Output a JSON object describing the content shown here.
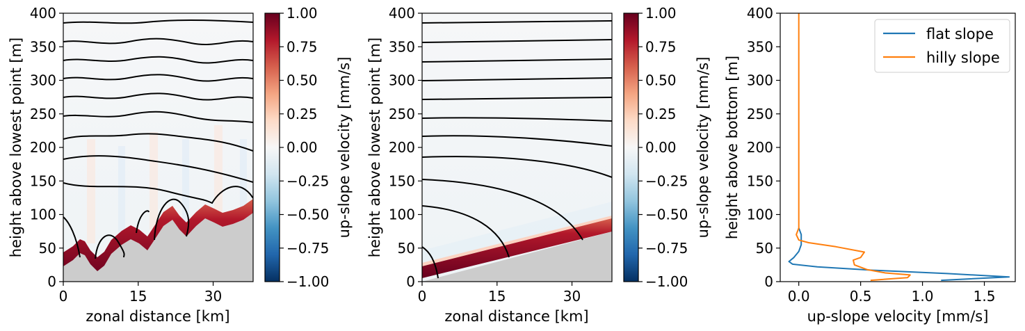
{
  "colors": {
    "flat": "#1f77b4",
    "hilly": "#ff7f0e",
    "terrain": "#cccccc",
    "cmap_stops": [
      "#053061",
      "#2166ac",
      "#4393c3",
      "#92c5de",
      "#d1e5f0",
      "#f7f7f7",
      "#fddbc7",
      "#f4a582",
      "#d6604d",
      "#b2182b",
      "#67001f"
    ]
  },
  "chart_data": [
    {
      "type": "heatmap",
      "panel": "left",
      "xlabel": "zonal distance [km]",
      "ylabel": "height above lowest point [m]",
      "xlim": [
        0,
        38
      ],
      "ylim": [
        0,
        400
      ],
      "xticks": [
        0,
        15,
        30
      ],
      "yticks": [
        0,
        50,
        100,
        150,
        200,
        250,
        300,
        350,
        400
      ],
      "colorbar": {
        "label": "up-slope velocity [mm/s]",
        "range": [
          -1.0,
          1.0
        ],
        "ticks": [
          "1.00",
          "0.75",
          "0.50",
          "0.25",
          "0.00",
          "−0.25",
          "−0.50",
          "−0.75",
          "−1.00"
        ],
        "tick_values": [
          1.0,
          0.75,
          0.5,
          0.25,
          0.0,
          -0.25,
          -0.5,
          -0.75,
          -1.0
        ]
      },
      "terrain_x": [
        0,
        2,
        4,
        6,
        8,
        10,
        12,
        14,
        16,
        18,
        20,
        22,
        24,
        26,
        28,
        30,
        32,
        34,
        36,
        38
      ],
      "terrain_y": [
        22,
        35,
        50,
        40,
        25,
        30,
        52,
        70,
        78,
        60,
        65,
        85,
        92,
        75,
        68,
        80,
        88,
        80,
        75,
        90
      ]
    },
    {
      "type": "heatmap",
      "panel": "middle",
      "xlabel": "zonal distance [km]",
      "ylabel": "height above lowest point [m]",
      "xlim": [
        0,
        38
      ],
      "ylim": [
        0,
        400
      ],
      "xticks": [
        0,
        15,
        30
      ],
      "yticks": [
        0,
        50,
        100,
        150,
        200,
        250,
        300,
        350,
        400
      ],
      "colorbar": {
        "label": "up-slope velocity [mm/s]",
        "range": [
          -1.0,
          1.0
        ],
        "ticks": [
          "1.00",
          "0.75",
          "0.50",
          "0.25",
          "0.00",
          "−0.25",
          "−0.50",
          "−0.75",
          "−1.00"
        ],
        "tick_values": [
          1.0,
          0.75,
          0.5,
          0.25,
          0.0,
          -0.25,
          -0.5,
          -0.75,
          -1.0
        ]
      },
      "terrain_x": [
        0,
        38
      ],
      "terrain_y": [
        0,
        75
      ]
    },
    {
      "type": "line",
      "panel": "right",
      "xlabel": "up-slope velocity [mm/s]",
      "ylabel": "height above bottom [m]",
      "xlim": [
        -0.15,
        1.75
      ],
      "ylim": [
        0,
        400
      ],
      "xticks": [
        0.0,
        0.5,
        1.0,
        1.5
      ],
      "xtick_labels": [
        "0.0",
        "0.5",
        "1.0",
        "1.5"
      ],
      "yticks": [
        0,
        50,
        100,
        150,
        200,
        250,
        300,
        350,
        400
      ],
      "legend_position": "top-right",
      "series": [
        {
          "name": "flat slope",
          "color": "#1f77b4",
          "points": [
            [
              1.15,
              2
            ],
            [
              1.7,
              7
            ],
            [
              1.2,
              12
            ],
            [
              0.6,
              17
            ],
            [
              0.15,
              22
            ],
            [
              -0.05,
              26
            ],
            [
              -0.08,
              30
            ],
            [
              -0.04,
              36
            ],
            [
              0.0,
              45
            ],
            [
              0.02,
              55
            ],
            [
              0.02,
              70
            ],
            [
              0.0,
              80
            ]
          ]
        },
        {
          "name": "hilly slope",
          "color": "#ff7f0e",
          "points": [
            [
              0.58,
              2
            ],
            [
              0.88,
              6
            ],
            [
              0.9,
              10
            ],
            [
              0.7,
              13
            ],
            [
              0.55,
              18
            ],
            [
              0.45,
              25
            ],
            [
              0.44,
              32
            ],
            [
              0.5,
              36
            ],
            [
              0.53,
              44
            ],
            [
              0.3,
              52
            ],
            [
              0.08,
              58
            ],
            [
              0.0,
              62
            ],
            [
              -0.02,
              70
            ],
            [
              0.0,
              80
            ],
            [
              0.0,
              100
            ],
            [
              0.0,
              200
            ],
            [
              0.0,
              300
            ],
            [
              0.0,
              400
            ]
          ]
        }
      ]
    }
  ]
}
